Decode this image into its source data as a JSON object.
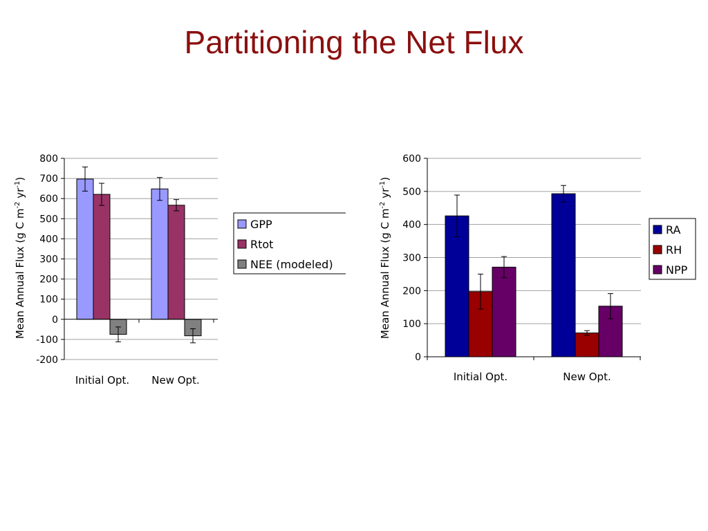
{
  "slide": {
    "title": "Partitioning the Net Flux"
  },
  "chart_data": [
    {
      "type": "bar",
      "categories": [
        "Initial Opt.",
        "New Opt."
      ],
      "series": [
        {
          "name": "GPP",
          "values": [
            697,
            648
          ],
          "errors": [
            60,
            57
          ],
          "color": "#9999ff"
        },
        {
          "name": "Rtot",
          "values": [
            621,
            567
          ],
          "errors": [
            55,
            28
          ],
          "color": "#993366"
        },
        {
          "name": "NEE (modeled)",
          "values": [
            -75,
            -82
          ],
          "errors": [
            37,
            35
          ],
          "color": "#808080"
        }
      ],
      "ylabel": "Mean Annual Flux (g C m-2 yr-1)",
      "ylabel_parts": [
        "Mean Annual Flux (g C m",
        "-2",
        " yr",
        "-1",
        ")"
      ],
      "ylim": [
        -200,
        800
      ],
      "yticks": [
        -200,
        -100,
        0,
        100,
        200,
        300,
        400,
        500,
        600,
        700,
        800
      ],
      "grid": true,
      "legend": "right"
    },
    {
      "type": "bar",
      "categories": [
        "Initial Opt.",
        "New Opt."
      ],
      "series": [
        {
          "name": "RA",
          "values": [
            426,
            493
          ],
          "errors": [
            63,
            25
          ],
          "color": "#000099"
        },
        {
          "name": "RH",
          "values": [
            197,
            72
          ],
          "errors": [
            53,
            7
          ],
          "color": "#990000"
        },
        {
          "name": "NPP",
          "values": [
            271,
            153
          ],
          "errors": [
            32,
            38
          ],
          "color": "#660066"
        }
      ],
      "ylabel": "Mean Annual Flux (g C m-2 yr-1)",
      "ylabel_parts": [
        "Mean Annual Flux (g C m",
        "-2",
        " yr",
        "-1",
        ")"
      ],
      "ylim": [
        0,
        600
      ],
      "yticks": [
        0,
        100,
        200,
        300,
        400,
        500,
        600
      ],
      "grid": true,
      "legend": "right"
    }
  ]
}
